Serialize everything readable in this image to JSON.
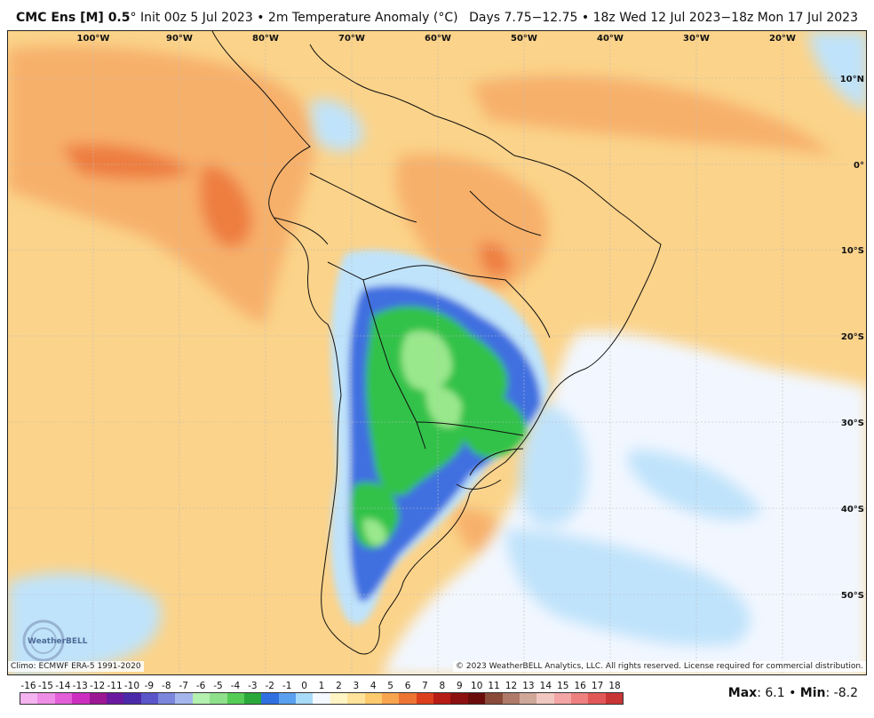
{
  "header": {
    "model": "CMC Ens [M] 0.5",
    "degree": "°",
    "init": "Init 00z 5 Jul 2023",
    "bullet": "•",
    "field": "2m Temperature Anomaly (°C)",
    "valid": "Days 7.75−12.75 • 18z Wed 12 Jul 2023−18z Mon 17 Jul 2023"
  },
  "map": {
    "lon_labels": [
      "100°W",
      "90°W",
      "80°W",
      "70°W",
      "60°W",
      "50°W",
      "40°W",
      "30°W",
      "20°W"
    ],
    "lat_labels": [
      "10°N",
      "0°",
      "10°S",
      "20°S",
      "30°S",
      "40°S",
      "50°S"
    ],
    "logo_text": "WeatherBELL",
    "colors": {
      "ocean_warm": "#fbd38a",
      "ocean_neutral": "#f2f7ff",
      "warm_orange": "#f7b06a",
      "hot_orange": "#ee7d3f",
      "cool_light": "#bfe3fb",
      "cool_blue": "#3f6fe0",
      "cold_green": "#33c24a",
      "light_green": "#9ae88c",
      "border": "#111111"
    }
  },
  "footer": {
    "climo": "Climo: ECMWF ERA-5 1991-2020",
    "copyright": "© 2023 WeatherBELL Analytics, LLC. All rights reserved. License required for commercial distribution."
  },
  "legend": {
    "labels": [
      "-16",
      "-15",
      "-14",
      "-13",
      "-12",
      "-11",
      "-10",
      "-9",
      "-8",
      "-7",
      "-6",
      "-5",
      "-4",
      "-3",
      "-2",
      "-1",
      "0",
      "1",
      "2",
      "3",
      "4",
      "5",
      "6",
      "7",
      "8",
      "9",
      "10",
      "11",
      "12",
      "13",
      "14",
      "15",
      "16",
      "17",
      "18"
    ],
    "colors": [
      "#f5b3f0",
      "#ee8ee6",
      "#e35fd8",
      "#cc2fbf",
      "#9c1794",
      "#6a1aa0",
      "#4a2aa8",
      "#5a55c8",
      "#7b86dc",
      "#a4b6ec",
      "#b4f0b0",
      "#8ee08a",
      "#55cc55",
      "#2aa83a",
      "#2f6fe0",
      "#5aa0f0",
      "#a8dbf8",
      "#f4f8ff",
      "#fff4c4",
      "#ffe39a",
      "#fdcb6e",
      "#f7a54f",
      "#ee7434",
      "#dc3f1c",
      "#b61b14",
      "#8c1010",
      "#6a0c0c",
      "#8a4a3a",
      "#b07a6a",
      "#cfa89a",
      "#f0c8c0",
      "#f4a6a6",
      "#ee8080",
      "#e25858",
      "#c83535"
    ]
  },
  "stats": {
    "max_label": "Max",
    "max_value": "6.1",
    "bullet": "•",
    "min_label": "Min",
    "min_value": "-8.2"
  }
}
